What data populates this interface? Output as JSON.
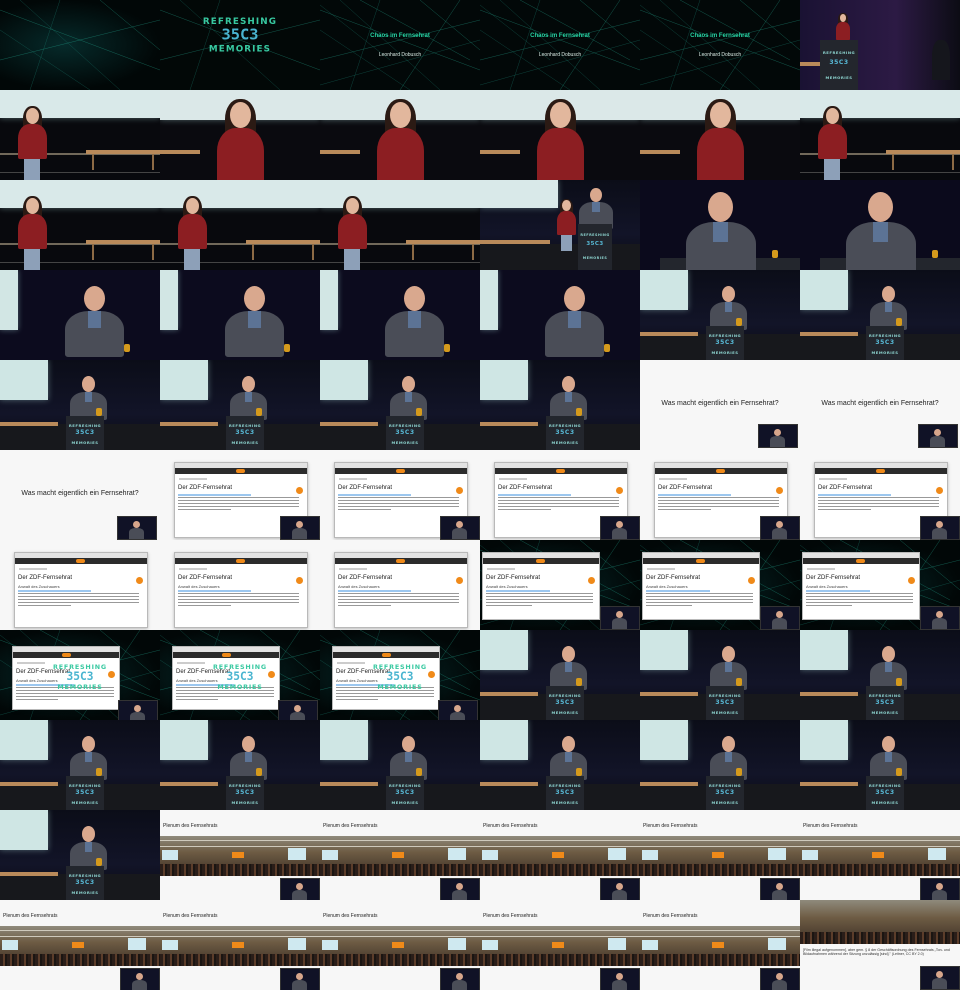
{
  "slides": {
    "logo": {
      "line1": "REFRESHING",
      "line2": "MEMORIES",
      "mark": "35C3"
    },
    "talk_title": "Chaos im Fernsehrat",
    "speaker": "Leonhard Dobusch",
    "question": "Was macht eigentlich ein Fernsehrat?",
    "page_heading": "Der ZDF-Fernsehrat",
    "page_subheading": "Anwalt des Zuschauers",
    "plenum_caption": "Plenum des Fernsehrats",
    "final_quote": "[Film illegal aufgenommen], aber gem. § 8 der Geschäftsordnung des Fernsehrats „Ton- und Bildaufnahmen während der Sitzung unzulässig [sind].\" (Leitner, CC BY 2.0)",
    "podium_logo_top": "REFRESHING",
    "podium_logo_bottom": "MEMORIES"
  },
  "colors": {
    "logo_green": "#38c9a1",
    "logo_blue": "#49b4d0",
    "zdf_orange": "#f08a19",
    "jacket_red": "#8c1e22"
  },
  "thumbnails": [
    "net-intro",
    "logo-slide",
    "title-slide",
    "title-slide",
    "title-slide",
    "speaker-woman-podium",
    "woman-stage-wide",
    "woman-closeup",
    "woman-closeup",
    "woman-closeup",
    "woman-closeup",
    "woman-stage-wide",
    "woman-stage-wide",
    "woman-stage-wide",
    "woman-stage-wide",
    "handover",
    "man-closeup",
    "man-closeup",
    "man-medium",
    "man-medium",
    "man-medium",
    "man-medium",
    "man-podium-wide",
    "man-podium-wide",
    "man-podium-wide",
    "man-podium-wide",
    "man-podium-wide",
    "man-podium-wide",
    "question-slide",
    "question-slide",
    "question-slide-left",
    "browser-slide",
    "browser-slide",
    "browser-slide",
    "browser-slide",
    "browser-slide",
    "browser-slide-sub",
    "browser-slide-sub",
    "browser-slide-sub",
    "browser-net",
    "browser-net",
    "browser-net",
    "browser-net-left",
    "browser-net-left",
    "browser-net-left",
    "man-podium-wide",
    "man-podium-wide",
    "man-podium-wide",
    "man-podium-wide",
    "man-podium-wide",
    "man-podium-wide",
    "man-podium-wide",
    "man-podium-wide",
    "man-podium-wide",
    "man-podium-wide",
    "plenum",
    "plenum",
    "plenum",
    "plenum",
    "plenum",
    "plenum",
    "plenum",
    "plenum",
    "plenum",
    "plenum",
    "quote-slide"
  ]
}
